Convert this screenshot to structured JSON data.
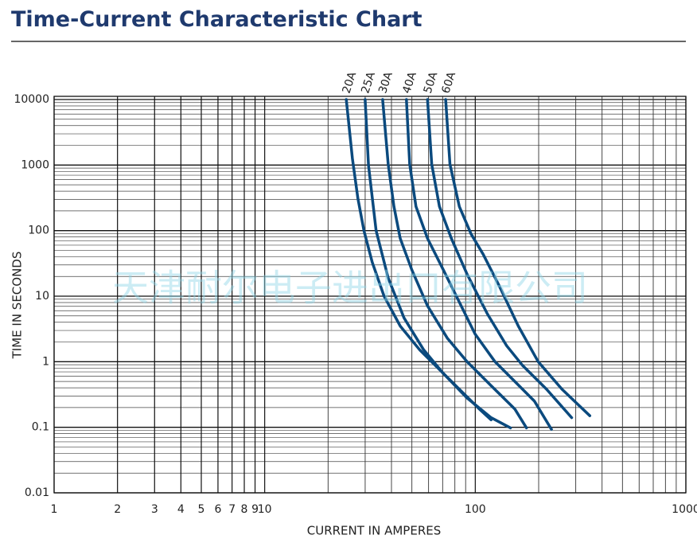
{
  "chart_data": {
    "type": "line",
    "title": "Time-Current Characteristic Chart",
    "x_label": "CURRENT IN AMPERES",
    "y_label": "TIME IN SECONDS",
    "watermark": "天津耐尔电子进出口有限公司",
    "xscale": "log",
    "yscale": "log",
    "grid": true,
    "xlim": [
      1,
      1000
    ],
    "ylim": [
      0.01,
      10000
    ],
    "xticks": [
      1,
      2,
      3,
      4,
      5,
      6,
      7,
      8,
      9,
      10,
      100,
      1000
    ],
    "yticks": [
      0.01,
      0.1,
      1,
      10,
      100,
      1000,
      10000
    ],
    "series": [
      {
        "name": "20A",
        "color": "#0b4a7e",
        "x": [
          24.4,
          26.1,
          27.7,
          29.6,
          32.4,
          36.9,
          44,
          54.6,
          67.6,
          84,
          104.5,
          118.9
        ],
        "values": [
          10000,
          1260,
          310,
          100,
          33,
          10,
          3.5,
          1.5,
          0.76,
          0.38,
          0.19,
          0.13
        ]
      },
      {
        "name": "25A",
        "color": "#0b4a7e",
        "x": [
          30,
          31.1,
          33.8,
          38.6,
          45.9,
          56.9,
          70.6,
          91.4,
          118.9,
          147
        ],
        "values": [
          10000,
          1000,
          100,
          18.9,
          4.66,
          1.52,
          0.66,
          0.28,
          0.14,
          0.098
        ]
      },
      {
        "name": "30A",
        "color": "#0b4a7e",
        "x": [
          36.3,
          38.6,
          41.1,
          44,
          50,
          59.3,
          73.6,
          91.4,
          119,
          154,
          175
        ],
        "values": [
          10000,
          1030,
          233,
          76,
          25,
          7.1,
          2.3,
          1,
          0.43,
          0.19,
          0.098
        ]
      },
      {
        "name": "40A",
        "color": "#0b4a7e",
        "x": [
          47.1,
          48.8,
          52.3,
          59.3,
          70.6,
          84,
          99.7,
          124,
          154,
          191,
          230
        ],
        "values": [
          10000,
          1030,
          233,
          76,
          25,
          8.1,
          2.66,
          1,
          0.5,
          0.25,
          0.093
        ]
      },
      {
        "name": "50A",
        "color": "#0b4a7e",
        "x": [
          59.3,
          62.1,
          67.6,
          77,
          91.4,
          114,
          141,
          168,
          218,
          287
        ],
        "values": [
          10000,
          1030,
          233,
          76,
          21.7,
          5.4,
          1.75,
          0.87,
          0.38,
          0.14
        ]
      },
      {
        "name": "60A",
        "color": "#0b4a7e",
        "x": [
          72.3,
          75.8,
          84,
          95.6,
          109,
          130,
          160,
          199,
          258,
          350
        ],
        "values": [
          10000,
          1030,
          233,
          88,
          43.6,
          14.3,
          3.5,
          1,
          0.38,
          0.15
        ]
      }
    ]
  }
}
